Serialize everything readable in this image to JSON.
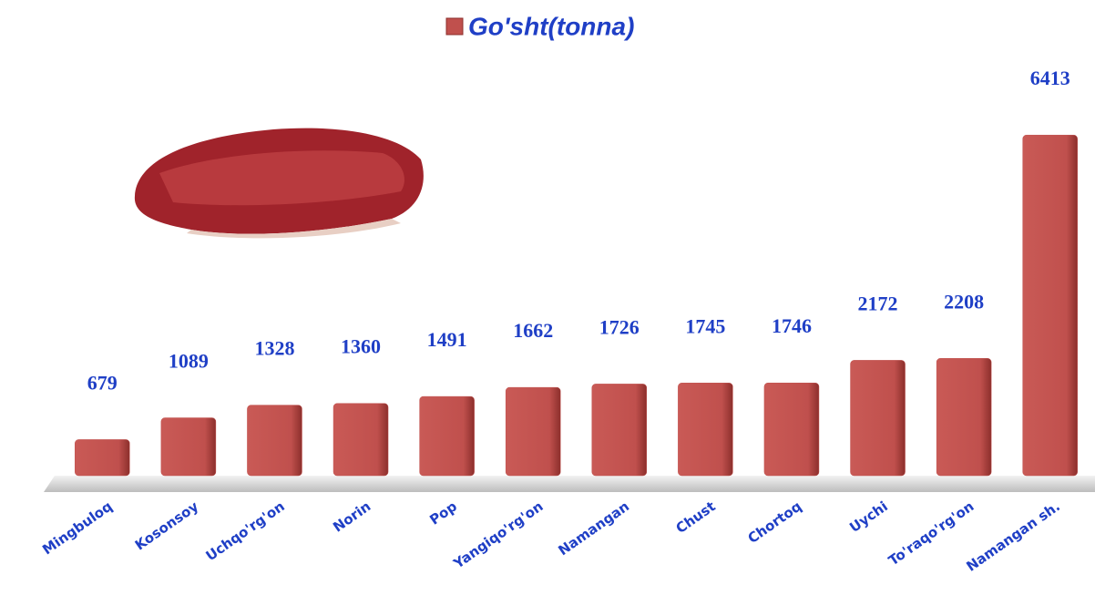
{
  "chart_data": {
    "type": "bar",
    "categories": [
      "Mingbuloq",
      "Kosonsoy",
      "Uchqo'rg'on",
      "Norin",
      "Pop",
      "Yangiqo'rg'on",
      "Namangan",
      "Chust",
      "Chortoq",
      "Uychi",
      "To'raqo'rg'on",
      "Namangan sh."
    ],
    "series": [
      {
        "name": "Go'sht(tonna)",
        "color": "#c0504d",
        "values": [
          679,
          1089,
          1328,
          1360,
          1491,
          1662,
          1726,
          1745,
          1746,
          2172,
          2208,
          6413
        ]
      }
    ],
    "ylim": [
      0,
      7000
    ]
  }
}
